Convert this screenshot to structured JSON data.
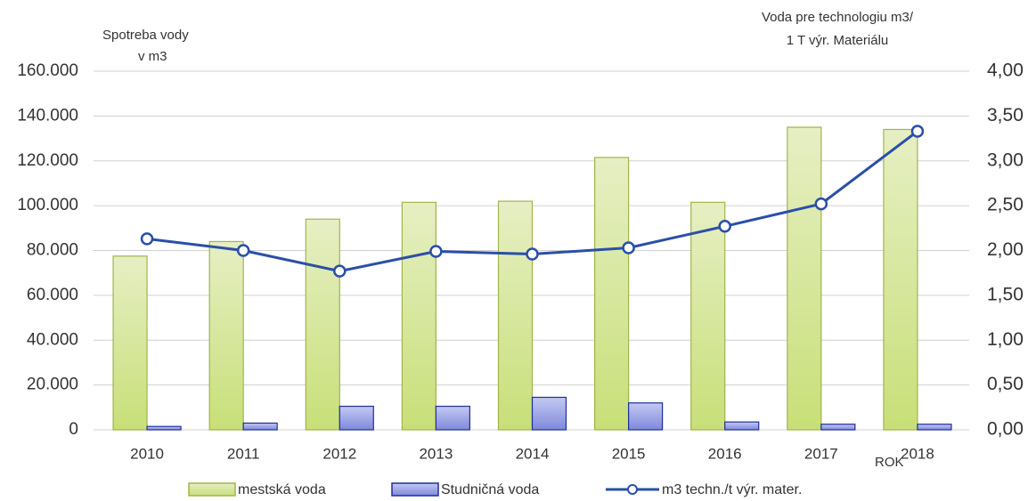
{
  "chart_data": {
    "type": "bar-line",
    "y_label": [
      "Spotreba vody",
      "v  m3"
    ],
    "y2_label": [
      "Voda pre technologiu m3/",
      "1 T výr. Materiálu"
    ],
    "x_label": "ROK",
    "categories": [
      "2010",
      "2011",
      "2012",
      "2013",
      "2014",
      "2015",
      "2016",
      "2017",
      "2018"
    ],
    "series": [
      {
        "name": "mestská voda",
        "color": "#d4e597",
        "type": "bar",
        "values": [
          77500,
          84000,
          94000,
          101500,
          102000,
          121500,
          101500,
          135000,
          134000
        ]
      },
      {
        "name": "Studničná voda",
        "color": "#9aa3e6",
        "type": "bar",
        "values": [
          1500,
          3000,
          10500,
          10500,
          14500,
          12000,
          3500,
          2500,
          2500
        ]
      },
      {
        "name": "m3 techn./t výr. mater.",
        "color": "#2a4fa8",
        "type": "line",
        "axis": "y2",
        "values": [
          2.13,
          2.0,
          1.77,
          1.99,
          1.96,
          2.03,
          2.27,
          2.52,
          3.33
        ]
      }
    ],
    "ylim": [
      0,
      160000
    ],
    "yticks": [
      0,
      {
        "value": 20000,
        "label": "20.000"
      },
      {
        "value": 40000,
        "label": "40.000"
      },
      {
        "value": 60000,
        "label": "60.000"
      },
      {
        "value": 80000,
        "label": "80.000"
      },
      {
        "value": 100000,
        "label": "100.000"
      },
      {
        "value": 120000,
        "label": "120.000"
      },
      {
        "value": 140000,
        "label": "140.000"
      },
      {
        "value": 160000,
        "label": "160.000"
      }
    ],
    "y2lim": [
      0,
      4
    ],
    "y2ticks": [
      {
        "value": 0,
        "label": "0,00"
      },
      {
        "value": 0.5,
        "label": "0,50"
      },
      {
        "value": 1,
        "label": "1,00"
      },
      {
        "value": 1.5,
        "label": "1,50"
      },
      {
        "value": 2,
        "label": "2,00"
      },
      {
        "value": 2.5,
        "label": "2,50"
      },
      {
        "value": 3,
        "label": "3,00"
      },
      {
        "value": 3.5,
        "label": "3,50"
      },
      {
        "value": 4,
        "label": "4,00"
      }
    ],
    "grid": true
  }
}
